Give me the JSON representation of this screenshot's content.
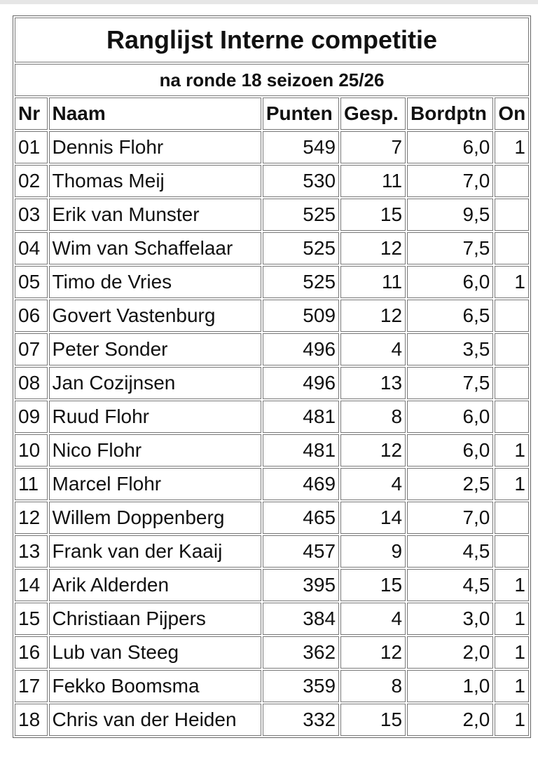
{
  "title": "Ranglijst Interne competitie",
  "subtitle": "na ronde 18 seizoen 25/26",
  "table": {
    "header": [
      "Nr",
      "Naam",
      "Punten",
      "Gesp.",
      "Bordptn",
      "On"
    ],
    "rows": [
      [
        "01",
        "Dennis Flohr",
        "549",
        "7",
        "6,0",
        "1"
      ],
      [
        "02",
        "Thomas Meij",
        "530",
        "11",
        "7,0",
        null
      ],
      [
        "03",
        "Erik van Munster",
        "525",
        "15",
        "9,5",
        null
      ],
      [
        "04",
        "Wim van Schaffelaar",
        "525",
        "12",
        "7,5",
        null
      ],
      [
        "05",
        "Timo de Vries",
        "525",
        "11",
        "6,0",
        "1"
      ],
      [
        "06",
        "Govert Vastenburg",
        "509",
        "12",
        "6,5",
        null
      ],
      [
        "07",
        "Peter Sonder",
        "496",
        "4",
        "3,5",
        null
      ],
      [
        "08",
        "Jan Cozijnsen",
        "496",
        "13",
        "7,5",
        null
      ],
      [
        "09",
        "Ruud Flohr",
        "481",
        "8",
        "6,0",
        null
      ],
      [
        "10",
        "Nico Flohr",
        "481",
        "12",
        "6,0",
        "1"
      ],
      [
        "11",
        "Marcel Flohr",
        "469",
        "4",
        "2,5",
        "1"
      ],
      [
        "12",
        "Willem Doppenberg",
        "465",
        "14",
        "7,0",
        null
      ],
      [
        "13",
        "Frank van der Kaaij",
        "457",
        "9",
        "4,5",
        null
      ],
      [
        "14",
        "Arik Alderden",
        "395",
        "15",
        "4,5",
        "1"
      ],
      [
        "15",
        "Christiaan Pijpers",
        "384",
        "4",
        "3,0",
        "1"
      ],
      [
        "16",
        "Lub van Steeg",
        "362",
        "12",
        "2,0",
        "1"
      ],
      [
        "17",
        "Fekko Boomsma",
        "359",
        "8",
        "1,0",
        "1"
      ],
      [
        "18",
        "Chris van der Heiden",
        "332",
        "15",
        "2,0",
        "1"
      ]
    ]
  }
}
